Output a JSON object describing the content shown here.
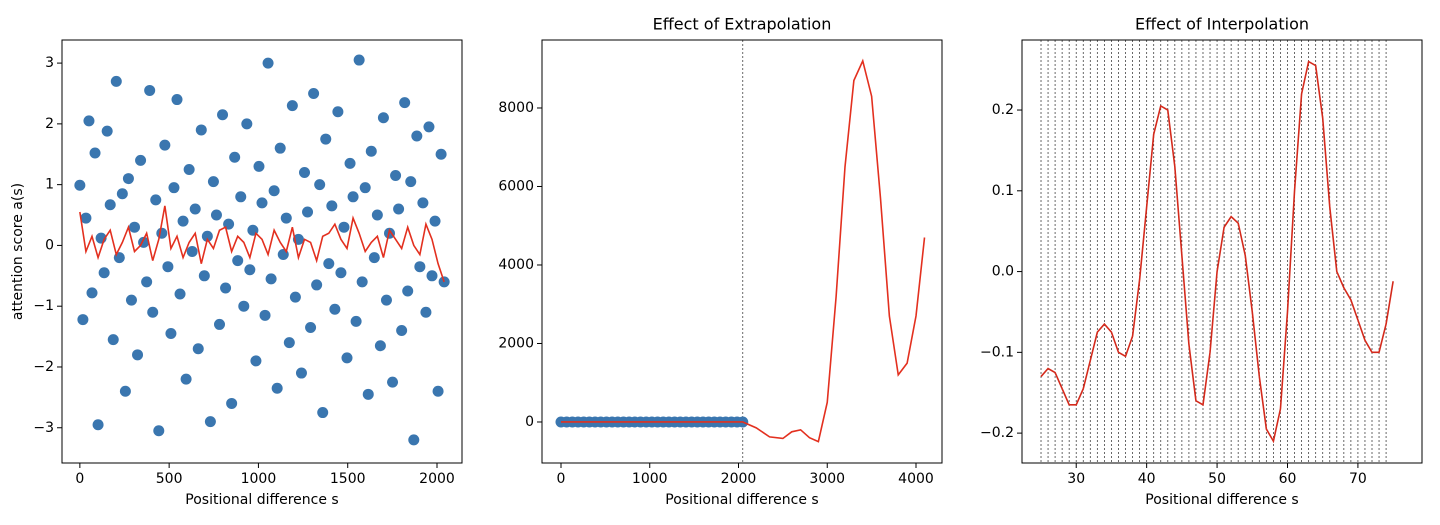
{
  "chart_data": [
    {
      "type": "scatter",
      "xlabel": "Positional difference s",
      "ylabel": "attention score a(s)",
      "xlim": [
        -100,
        2140
      ],
      "ylim": [
        -3.58,
        3.38
      ],
      "xticks": [
        0,
        500,
        1000,
        1500,
        2000
      ],
      "yticks": [
        {
          "value": -3,
          "label": "−3"
        },
        {
          "value": -2,
          "label": "−2"
        },
        {
          "value": -1,
          "label": "−1"
        },
        0,
        1,
        2,
        3
      ],
      "series": [
        {
          "type": "scatter",
          "color": "#3a76af",
          "x": [
            0,
            17,
            34,
            51,
            68,
            85,
            102,
            119,
            136,
            153,
            170,
            187,
            204,
            221,
            238,
            255,
            272,
            289,
            306,
            323,
            340,
            357,
            374,
            391,
            408,
            425,
            442,
            459,
            476,
            493,
            510,
            527,
            544,
            561,
            578,
            595,
            612,
            629,
            646,
            663,
            680,
            697,
            714,
            731,
            748,
            765,
            782,
            799,
            816,
            833,
            850,
            867,
            884,
            901,
            918,
            935,
            952,
            969,
            986,
            1003,
            1020,
            1037,
            1054,
            1071,
            1088,
            1105,
            1122,
            1139,
            1156,
            1173,
            1190,
            1207,
            1224,
            1241,
            1258,
            1275,
            1292,
            1309,
            1326,
            1343,
            1360,
            1377,
            1394,
            1411,
            1428,
            1445,
            1462,
            1479,
            1496,
            1513,
            1530,
            1547,
            1564,
            1581,
            1598,
            1615,
            1632,
            1649,
            1666,
            1683,
            1700,
            1717,
            1734,
            1751,
            1768,
            1785,
            1802,
            1819,
            1836,
            1853,
            1870,
            1887,
            1904,
            1921,
            1938,
            1955,
            1972,
            1989,
            2006,
            2023,
            2040
          ],
          "values": [
            0.99,
            -1.22,
            0.45,
            2.05,
            -0.78,
            1.52,
            -2.95,
            0.12,
            -0.45,
            1.88,
            0.67,
            -1.55,
            2.7,
            -0.2,
            0.85,
            -2.4,
            1.1,
            -0.9,
            0.3,
            -1.8,
            1.4,
            0.05,
            -0.6,
            2.55,
            -1.1,
            0.75,
            -3.05,
            0.2,
            1.65,
            -0.35,
            -1.45,
            0.95,
            2.4,
            -0.8,
            0.4,
            -2.2,
            1.25,
            -0.1,
            0.6,
            -1.7,
            1.9,
            -0.5,
            0.15,
            -2.9,
            1.05,
            0.5,
            -1.3,
            2.15,
            -0.7,
            0.35,
            -2.6,
            1.45,
            -0.25,
            0.8,
            -1.0,
            2.0,
            -0.4,
            0.25,
            -1.9,
            1.3,
            0.7,
            -1.15,
            3.0,
            -0.55,
            0.9,
            -2.35,
            1.6,
            -0.15,
            0.45,
            -1.6,
            2.3,
            -0.85,
            0.1,
            -2.1,
            1.2,
            0.55,
            -1.35,
            2.5,
            -0.65,
            1.0,
            -2.75,
            1.75,
            -0.3,
            0.65,
            -1.05,
            2.2,
            -0.45,
            0.3,
            -1.85,
            1.35,
            0.8,
            -1.25,
            3.05,
            -0.6,
            0.95,
            -2.45,
            1.55,
            -0.2,
            0.5,
            -1.65,
            2.1,
            -0.9,
            0.2,
            -2.25,
            1.15,
            0.6,
            -1.4,
            2.35,
            -0.75,
            1.05,
            -3.2,
            1.8,
            -0.35,
            0.7,
            -1.1,
            1.95,
            -0.5,
            0.4,
            -2.4,
            1.5,
            -0.6
          ]
        },
        {
          "type": "line",
          "color": "#e3301f",
          "x": [
            0,
            34,
            68,
            102,
            136,
            170,
            204,
            238,
            272,
            306,
            340,
            374,
            408,
            442,
            476,
            510,
            544,
            578,
            612,
            646,
            680,
            714,
            748,
            782,
            816,
            850,
            884,
            918,
            952,
            986,
            1020,
            1054,
            1088,
            1122,
            1156,
            1190,
            1224,
            1258,
            1292,
            1326,
            1360,
            1394,
            1428,
            1462,
            1496,
            1530,
            1564,
            1598,
            1632,
            1666,
            1700,
            1734,
            1768,
            1802,
            1836,
            1870,
            1904,
            1938,
            1972,
            2006,
            2040
          ],
          "values": [
            0.55,
            -0.1,
            0.15,
            -0.2,
            0.1,
            0.25,
            -0.15,
            0.05,
            0.3,
            -0.1,
            0,
            0.2,
            -0.25,
            0.1,
            0.65,
            -0.05,
            0.15,
            -0.2,
            0.05,
            0.2,
            -0.3,
            0.1,
            -0.05,
            0.25,
            0.3,
            -0.1,
            0.15,
            0.05,
            -0.2,
            0.2,
            0.1,
            -0.15,
            0.25,
            0.05,
            -0.1,
            0.3,
            -0.2,
            0.1,
            0.05,
            -0.25,
            0.15,
            0.2,
            0.35,
            0.1,
            -0.05,
            0.45,
            0.2,
            -0.1,
            0.05,
            0.15,
            -0.2,
            0.25,
            0.1,
            -0.05,
            0.3,
            0,
            -0.15,
            0.35,
            0.1,
            -0.3,
            -0.6
          ]
        }
      ]
    },
    {
      "type": "scatter",
      "title": "Effect of Extrapolation",
      "xlabel": "Positional difference s",
      "xlim": [
        -214,
        4293
      ],
      "ylim": [
        -1045,
        9732
      ],
      "xticks": [
        0,
        1000,
        2000,
        3000,
        4000
      ],
      "yticks": [
        0,
        2000,
        4000,
        6000,
        8000
      ],
      "vlines": [
        2048
      ],
      "series": [
        {
          "type": "scatter",
          "color": "#3a76af",
          "x": [
            0,
            64,
            128,
            192,
            256,
            320,
            384,
            448,
            512,
            576,
            640,
            704,
            768,
            832,
            896,
            960,
            1024,
            1088,
            1152,
            1216,
            1280,
            1344,
            1408,
            1472,
            1536,
            1600,
            1664,
            1728,
            1792,
            1856,
            1920,
            1984,
            2048
          ],
          "values": [
            0,
            0,
            0,
            0,
            0,
            0,
            0,
            0,
            0,
            0,
            0,
            0,
            0,
            0,
            0,
            0,
            0,
            0,
            0,
            0,
            0,
            0,
            0,
            0,
            0,
            0,
            0,
            0,
            0,
            0,
            0,
            0,
            0
          ]
        },
        {
          "type": "line",
          "color": "#e3301f",
          "x": [
            0,
            2048,
            2200,
            2350,
            2500,
            2600,
            2700,
            2800,
            2900,
            3000,
            3100,
            3200,
            3300,
            3400,
            3500,
            3600,
            3700,
            3800,
            3900,
            4000,
            4096
          ],
          "values": [
            0,
            0,
            -150,
            -380,
            -420,
            -250,
            -200,
            -400,
            -500,
            500,
            3200,
            6500,
            8700,
            9200,
            8300,
            5700,
            2700,
            1200,
            1500,
            2700,
            4700
          ]
        }
      ]
    },
    {
      "type": "line",
      "title": "Effect of Interpolation",
      "xlabel": "Positional difference s",
      "xlim": [
        22.3,
        79.1
      ],
      "ylim": [
        -0.237,
        0.2867
      ],
      "xticks": [
        30,
        40,
        50,
        60,
        70
      ],
      "yticks": [
        {
          "value": -0.2,
          "label": "−0.2"
        },
        {
          "value": -0.1,
          "label": "−0.1"
        },
        {
          "value": 0,
          "label": "0.0"
        },
        0.1,
        0.2
      ],
      "vlines": [
        25,
        26,
        27,
        28,
        29,
        30,
        31,
        32,
        33,
        34,
        35,
        36,
        37,
        38,
        39,
        40,
        41,
        42,
        43,
        44,
        45,
        46,
        47,
        48,
        49,
        50,
        51,
        52,
        53,
        54,
        55,
        56,
        57,
        58,
        59,
        60,
        61,
        62,
        63,
        64,
        65,
        66,
        67,
        68,
        69,
        70,
        71,
        72,
        73,
        74
      ],
      "series": [
        {
          "type": "line",
          "color": "#d42a1c",
          "x": [
            25,
            26,
            27,
            28,
            29,
            30,
            31,
            32,
            33,
            34,
            35,
            36,
            37,
            38,
            39,
            40,
            41,
            42,
            43,
            44,
            45,
            46,
            47,
            48,
            49,
            50,
            51,
            52,
            53,
            54,
            55,
            56,
            57,
            58,
            59,
            60,
            61,
            62,
            63,
            64,
            65,
            66,
            67,
            68,
            69,
            70,
            71,
            72,
            73,
            74,
            75
          ],
          "values": [
            -0.13,
            -0.12,
            -0.125,
            -0.145,
            -0.165,
            -0.165,
            -0.145,
            -0.11,
            -0.075,
            -0.065,
            -0.075,
            -0.1,
            -0.105,
            -0.08,
            -0.01,
            0.08,
            0.17,
            0.205,
            0.2,
            0.13,
            0.02,
            -0.09,
            -0.16,
            -0.165,
            -0.1,
            0,
            0.055,
            0.068,
            0.06,
            0.02,
            -0.05,
            -0.13,
            -0.195,
            -0.21,
            -0.17,
            -0.05,
            0.1,
            0.22,
            0.26,
            0.255,
            0.19,
            0.08,
            0,
            -0.02,
            -0.035,
            -0.06,
            -0.085,
            -0.1,
            -0.1,
            -0.065,
            -0.012
          ]
        }
      ]
    }
  ]
}
